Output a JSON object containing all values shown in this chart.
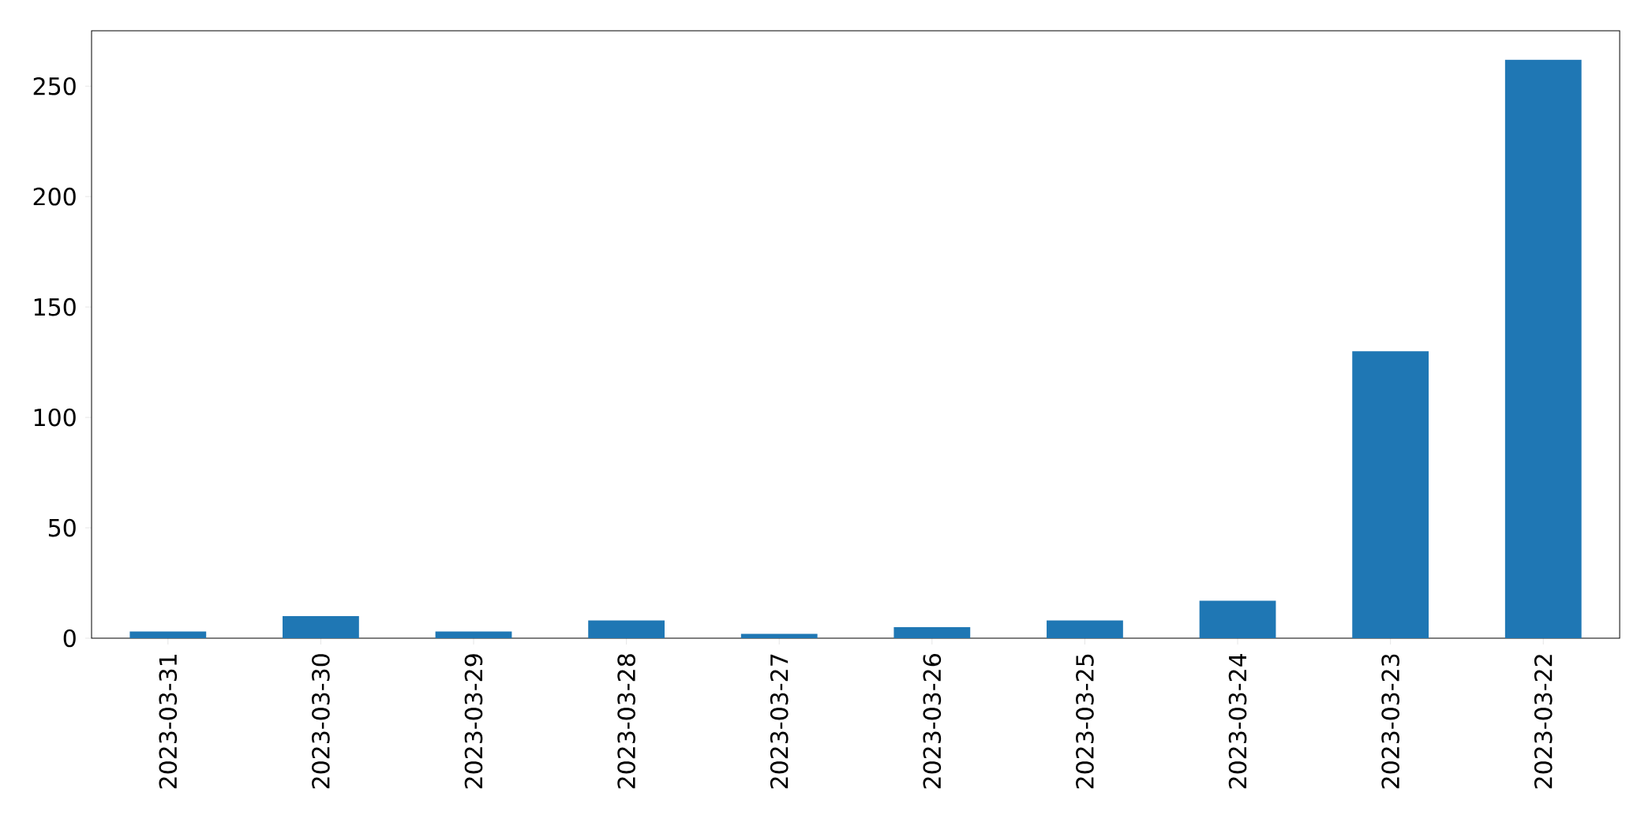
{
  "chart_data": {
    "type": "bar",
    "categories": [
      "2023-03-31",
      "2023-03-30",
      "2023-03-29",
      "2023-03-28",
      "2023-03-27",
      "2023-03-26",
      "2023-03-25",
      "2023-03-24",
      "2023-03-23",
      "2023-03-22"
    ],
    "values": [
      3,
      10,
      3,
      8,
      2,
      5,
      8,
      17,
      130,
      262
    ],
    "color": "#1f77b4",
    "ylim": [
      0,
      275.1
    ],
    "yticks": [
      0,
      50,
      100,
      150,
      200,
      250
    ]
  }
}
